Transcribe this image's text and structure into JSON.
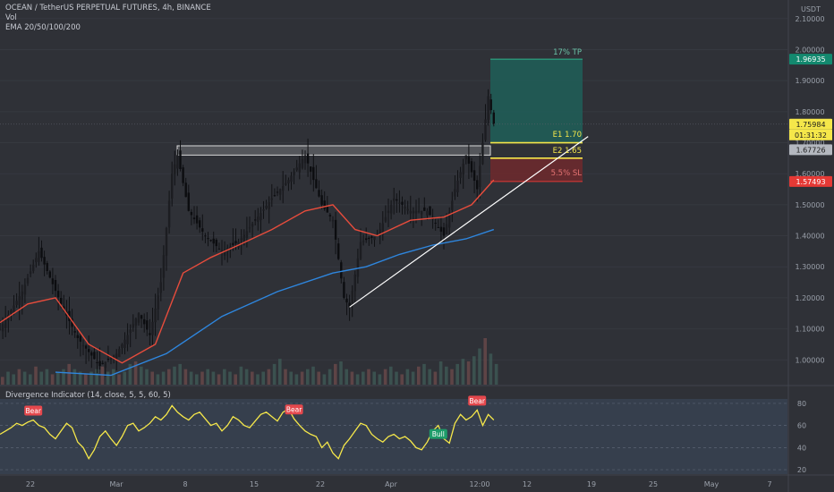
{
  "header": {
    "symbol_line": "OCEAN / TetherUS PERPETUAL FUTURES, 4h, BINANCE",
    "volume_label": "Vol",
    "ema_label": "EMA 20/50/100/200"
  },
  "price_axis": {
    "currency": "USDT",
    "ticks": [
      "2.10000",
      "2.00000",
      "1.90000",
      "1.80000",
      "1.70000",
      "1.60000",
      "1.50000",
      "1.40000",
      "1.30000",
      "1.20000",
      "1.10000",
      "1.00000"
    ],
    "tp_badge": "1.96935",
    "last_price_badge": "1.75984",
    "countdown_badge": "01:31:32",
    "e1_badge": "1.67726",
    "sl_badge": "1.57493"
  },
  "annotations": {
    "tp_label": "17% TP",
    "e1_label": "E1 1.70",
    "e2_label": "E2 1.65",
    "sl_label": "5.5% SL"
  },
  "oscillator": {
    "title": "Divergence Indicator (14, close, 5, 5, 60, 5)",
    "ticks": [
      "80",
      "60",
      "40",
      "20"
    ],
    "signals": [
      {
        "label": "Bear",
        "type": "bear"
      },
      {
        "label": "Bear",
        "type": "bear"
      },
      {
        "label": "Bull",
        "type": "bull"
      },
      {
        "label": "Bear",
        "type": "bear"
      }
    ]
  },
  "time_axis": {
    "labels": [
      "22",
      "Mar",
      "8",
      "15",
      "22",
      "Apr",
      "12:00",
      "12",
      "19",
      "25",
      "May",
      "7"
    ]
  },
  "colors": {
    "background": "#2f3137",
    "ema_fast": "#e74c3c",
    "ema_slow": "#2e86de",
    "rsi": "#f5e74a",
    "tp_zone": "#1f5f58",
    "sl_zone": "#6b2a2e",
    "tp_badge": "#13896f",
    "sl_badge": "#e53935",
    "price_badge": "#f5e74a",
    "bear_badge": "#e5484d",
    "bull_badge": "#1e9c6a"
  },
  "chart_data": {
    "type": "line",
    "title": "OCEAN / TetherUS PERPETUAL FUTURES, 4h, BINANCE",
    "ylim": [
      0.92,
      2.16
    ],
    "x_labels": [
      "22",
      "Mar",
      "8",
      "15",
      "22",
      "Apr",
      "12:00",
      "12",
      "19",
      "25",
      "May",
      "7"
    ],
    "price_path": [
      {
        "x": 0,
        "y": 1.1
      },
      {
        "x": 4,
        "y": 1.22
      },
      {
        "x": 7,
        "y": 1.35
      },
      {
        "x": 11,
        "y": 1.18
      },
      {
        "x": 14,
        "y": 1.07
      },
      {
        "x": 18,
        "y": 0.98
      },
      {
        "x": 21,
        "y": 1.02
      },
      {
        "x": 23,
        "y": 1.08
      },
      {
        "x": 25,
        "y": 1.15
      },
      {
        "x": 27,
        "y": 1.08
      },
      {
        "x": 29,
        "y": 1.25
      },
      {
        "x": 31,
        "y": 1.6
      },
      {
        "x": 32,
        "y": 1.66
      },
      {
        "x": 34,
        "y": 1.48
      },
      {
        "x": 37,
        "y": 1.4
      },
      {
        "x": 40,
        "y": 1.35
      },
      {
        "x": 43,
        "y": 1.38
      },
      {
        "x": 46,
        "y": 1.45
      },
      {
        "x": 49,
        "y": 1.52
      },
      {
        "x": 52,
        "y": 1.58
      },
      {
        "x": 55,
        "y": 1.66
      },
      {
        "x": 58,
        "y": 1.5
      },
      {
        "x": 60,
        "y": 1.45
      },
      {
        "x": 62,
        "y": 1.2
      },
      {
        "x": 63,
        "y": 1.17
      },
      {
        "x": 65,
        "y": 1.38
      },
      {
        "x": 68,
        "y": 1.4
      },
      {
        "x": 71,
        "y": 1.52
      },
      {
        "x": 74,
        "y": 1.48
      },
      {
        "x": 77,
        "y": 1.48
      },
      {
        "x": 80,
        "y": 1.4
      },
      {
        "x": 82,
        "y": 1.55
      },
      {
        "x": 84,
        "y": 1.66
      },
      {
        "x": 86,
        "y": 1.55
      },
      {
        "x": 88,
        "y": 1.85
      },
      {
        "x": 89,
        "y": 1.76
      }
    ],
    "series": [
      {
        "name": "EMA 20/50/100/200",
        "values": [
          {
            "x": 0,
            "y": 1.12
          },
          {
            "x": 5,
            "y": 1.18
          },
          {
            "x": 10,
            "y": 1.2
          },
          {
            "x": 16,
            "y": 1.05
          },
          {
            "x": 22,
            "y": 0.99
          },
          {
            "x": 28,
            "y": 1.05
          },
          {
            "x": 33,
            "y": 1.28
          },
          {
            "x": 38,
            "y": 1.33
          },
          {
            "x": 43,
            "y": 1.37
          },
          {
            "x": 49,
            "y": 1.42
          },
          {
            "x": 55,
            "y": 1.48
          },
          {
            "x": 60,
            "y": 1.5
          },
          {
            "x": 64,
            "y": 1.42
          },
          {
            "x": 68,
            "y": 1.4
          },
          {
            "x": 74,
            "y": 1.45
          },
          {
            "x": 80,
            "y": 1.46
          },
          {
            "x": 85,
            "y": 1.5
          },
          {
            "x": 89,
            "y": 1.58
          }
        ]
      },
      {
        "name": "EMA 20/50/100/200",
        "values": [
          {
            "x": 10,
            "y": 0.96
          },
          {
            "x": 20,
            "y": 0.95
          },
          {
            "x": 30,
            "y": 1.02
          },
          {
            "x": 40,
            "y": 1.14
          },
          {
            "x": 50,
            "y": 1.22
          },
          {
            "x": 60,
            "y": 1.28
          },
          {
            "x": 66,
            "y": 1.3
          },
          {
            "x": 72,
            "y": 1.34
          },
          {
            "x": 78,
            "y": 1.37
          },
          {
            "x": 84,
            "y": 1.39
          },
          {
            "x": 89,
            "y": 1.42
          }
        ]
      }
    ],
    "volume": [
      3,
      5,
      4,
      6,
      5,
      4,
      7,
      5,
      6,
      4,
      5,
      6,
      8,
      6,
      5,
      4,
      5,
      6,
      7,
      5,
      6,
      4,
      5,
      8,
      9,
      7,
      6,
      5,
      4,
      5,
      6,
      7,
      8,
      6,
      5,
      4,
      5,
      6,
      5,
      4,
      6,
      5,
      4,
      7,
      6,
      5,
      4,
      5,
      6,
      8,
      10,
      6,
      5,
      4,
      5,
      6,
      7,
      5,
      4,
      6,
      8,
      9,
      6,
      5,
      4,
      5,
      6,
      5,
      4,
      6,
      7,
      5,
      4,
      6,
      5,
      7,
      8,
      6,
      5,
      9,
      7,
      6,
      8,
      10,
      9,
      11,
      14,
      18,
      12,
      8
    ],
    "levels": {
      "resistance": [
        1.66,
        1.69
      ],
      "tp": 1.96935,
      "e1": 1.7,
      "e2": 1.65,
      "sl": 1.57493,
      "last_price": 1.75984,
      "e1_badge": 1.67726
    },
    "trendline": [
      {
        "x": 63,
        "y": 1.17
      },
      {
        "x": 106,
        "y": 1.72
      }
    ],
    "oscillator": {
      "ylim": [
        16,
        84
      ],
      "grid_lines": [
        80,
        60,
        40,
        20
      ],
      "values": [
        52,
        55,
        58,
        62,
        60,
        63,
        65,
        60,
        58,
        52,
        48,
        55,
        62,
        58,
        45,
        40,
        30,
        38,
        50,
        55,
        48,
        42,
        50,
        60,
        62,
        55,
        58,
        62,
        68,
        65,
        70,
        78,
        72,
        68,
        65,
        70,
        72,
        66,
        60,
        62,
        55,
        60,
        68,
        65,
        60,
        58,
        64,
        70,
        72,
        68,
        64,
        72,
        75,
        66,
        60,
        55,
        52,
        50,
        40,
        45,
        35,
        30,
        42,
        48,
        55,
        62,
        60,
        52,
        48,
        45,
        50,
        52,
        48,
        50,
        46,
        40,
        38,
        45,
        55,
        60,
        48,
        44,
        62,
        70,
        65,
        68,
        74,
        60,
        70,
        65
      ],
      "signals_x": [
        6,
        53,
        79,
        86
      ]
    }
  }
}
